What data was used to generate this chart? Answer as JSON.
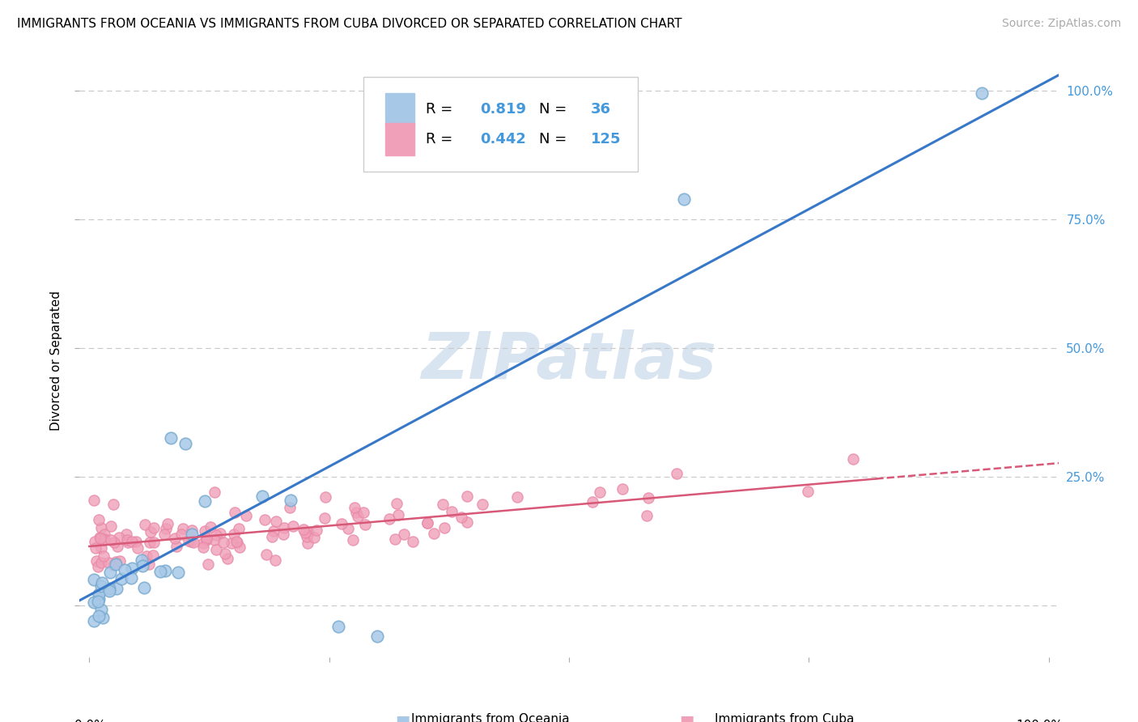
{
  "title": "IMMIGRANTS FROM OCEANIA VS IMMIGRANTS FROM CUBA DIVORCED OR SEPARATED CORRELATION CHART",
  "source": "Source: ZipAtlas.com",
  "ylabel": "Divorced or Separated",
  "legend_blue_R": "0.819",
  "legend_blue_N": "36",
  "legend_pink_R": "0.442",
  "legend_pink_N": "125",
  "blue_color": "#a8c8e8",
  "pink_color": "#f0a0b8",
  "blue_edge_color": "#7aacd0",
  "pink_edge_color": "#e888a8",
  "blue_line_color": "#3878c8",
  "pink_line_color": "#d85878",
  "watermark_color": "#d8e4f0",
  "background_color": "#ffffff",
  "grid_color": "#c8c8c8",
  "title_fontsize": 11,
  "source_fontsize": 10,
  "legend_fontsize": 13,
  "tick_fontsize": 11
}
